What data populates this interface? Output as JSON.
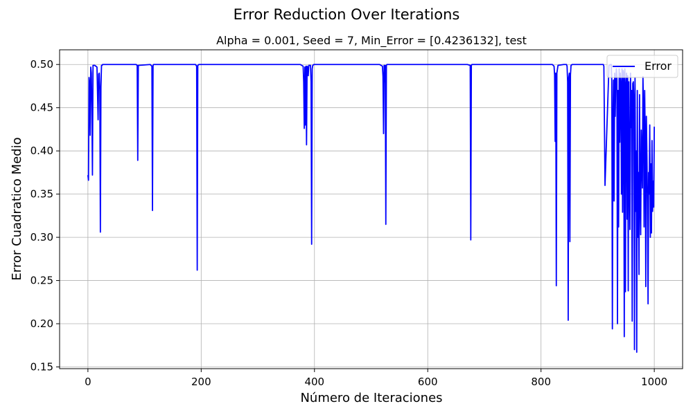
{
  "chart_data": {
    "type": "line",
    "suptitle": "Error Reduction Over Iterations",
    "title": "Alpha = 0.001, Seed = 7, Min_Error = [0.4236132], test",
    "xlabel": "Número de Iteraciones",
    "ylabel": "Error Cuadratico Medio",
    "xlim": [
      -50,
      1050
    ],
    "ylim": [
      0.148,
      0.517
    ],
    "xticks": [
      0,
      200,
      400,
      600,
      800,
      1000
    ],
    "xtick_labels": [
      "0",
      "200",
      "400",
      "600",
      "800",
      "1000"
    ],
    "yticks": [
      0.15,
      0.2,
      0.25,
      0.3,
      0.35,
      0.4,
      0.45,
      0.5
    ],
    "ytick_labels": [
      "0.15",
      "0.20",
      "0.25",
      "0.30",
      "0.35",
      "0.40",
      "0.45",
      "0.50"
    ],
    "grid": true,
    "legend": {
      "position": "top-right",
      "entries": [
        "Error"
      ]
    },
    "series": [
      {
        "name": "Error",
        "color": "#0000ff",
        "x": [
          0,
          1,
          2,
          3,
          4,
          5,
          6,
          7,
          8,
          9,
          10,
          12,
          16,
          18,
          19,
          20,
          21,
          22,
          23,
          24,
          25,
          26,
          27,
          30,
          85,
          87,
          88,
          89,
          90,
          110,
          113,
          114,
          115,
          116,
          118,
          190,
          192,
          193,
          194,
          196,
          200,
          375,
          380,
          381,
          382,
          383,
          384,
          385,
          386,
          387,
          388,
          389,
          390,
          393,
          394,
          395,
          396,
          397,
          399,
          400,
          515,
          520,
          521,
          522,
          523,
          524,
          525,
          526,
          527,
          528,
          530,
          670,
          675,
          676,
          677,
          678,
          680,
          820,
          823,
          824,
          825,
          826,
          827,
          828,
          830,
          840,
          845,
          846,
          847,
          848,
          849,
          850,
          851,
          852,
          853,
          855,
          905,
          909,
          910,
          911,
          913,
          920,
          923,
          924,
          925,
          926,
          927,
          928,
          929,
          930,
          931,
          932,
          933,
          934,
          935,
          936,
          937,
          938,
          939,
          940,
          941,
          942,
          943,
          944,
          945,
          946,
          947,
          948,
          949,
          950,
          951,
          952,
          953,
          954,
          955,
          956,
          957,
          958,
          959,
          960,
          961,
          962,
          963,
          964,
          965,
          966,
          967,
          968,
          969,
          970,
          971,
          972,
          973,
          974,
          975,
          976,
          977,
          978,
          979,
          980,
          981,
          982,
          983,
          984,
          985,
          986,
          987,
          988,
          989,
          990,
          991,
          992,
          993,
          994,
          995,
          996,
          997,
          998,
          999,
          1000
        ],
        "values": [
          0.372,
          0.366,
          0.485,
          0.478,
          0.418,
          0.497,
          0.49,
          0.45,
          0.372,
          0.499,
          0.499,
          0.499,
          0.497,
          0.436,
          0.489,
          0.49,
          0.47,
          0.306,
          0.474,
          0.499,
          0.499,
          0.5,
          0.5,
          0.5,
          0.5,
          0.499,
          0.389,
          0.499,
          0.499,
          0.5,
          0.498,
          0.331,
          0.499,
          0.5,
          0.5,
          0.5,
          0.498,
          0.262,
          0.499,
          0.5,
          0.5,
          0.5,
          0.498,
          0.48,
          0.426,
          0.497,
          0.43,
          0.498,
          0.407,
          0.498,
          0.497,
          0.487,
          0.499,
          0.499,
          0.48,
          0.292,
          0.495,
          0.499,
          0.5,
          0.5,
          0.5,
          0.498,
          0.486,
          0.42,
          0.499,
          0.48,
          0.499,
          0.315,
          0.499,
          0.5,
          0.5,
          0.5,
          0.499,
          0.297,
          0.499,
          0.5,
          0.5,
          0.5,
          0.498,
          0.488,
          0.411,
          0.49,
          0.244,
          0.49,
          0.499,
          0.5,
          0.5,
          0.498,
          0.48,
          0.204,
          0.485,
          0.49,
          0.295,
          0.488,
          0.499,
          0.5,
          0.5,
          0.5,
          0.5,
          0.498,
          0.36,
          0.499,
          0.5,
          0.5,
          0.48,
          0.194,
          0.43,
          0.482,
          0.342,
          0.49,
          0.44,
          0.48,
          0.495,
          0.485,
          0.2,
          0.47,
          0.312,
          0.495,
          0.41,
          0.49,
          0.476,
          0.35,
          0.495,
          0.329,
          0.493,
          0.49,
          0.185,
          0.495,
          0.237,
          0.475,
          0.49,
          0.321,
          0.487,
          0.238,
          0.48,
          0.38,
          0.309,
          0.49,
          0.427,
          0.47,
          0.203,
          0.478,
          0.48,
          0.458,
          0.17,
          0.485,
          0.33,
          0.4,
          0.167,
          0.47,
          0.3,
          0.375,
          0.257,
          0.465,
          0.345,
          0.303,
          0.424,
          0.39,
          0.357,
          0.486,
          0.445,
          0.312,
          0.47,
          0.415,
          0.243,
          0.44,
          0.395,
          0.34,
          0.223,
          0.375,
          0.35,
          0.43,
          0.3,
          0.385,
          0.305,
          0.412,
          0.33,
          0.365,
          0.335,
          0.428
        ]
      }
    ]
  }
}
